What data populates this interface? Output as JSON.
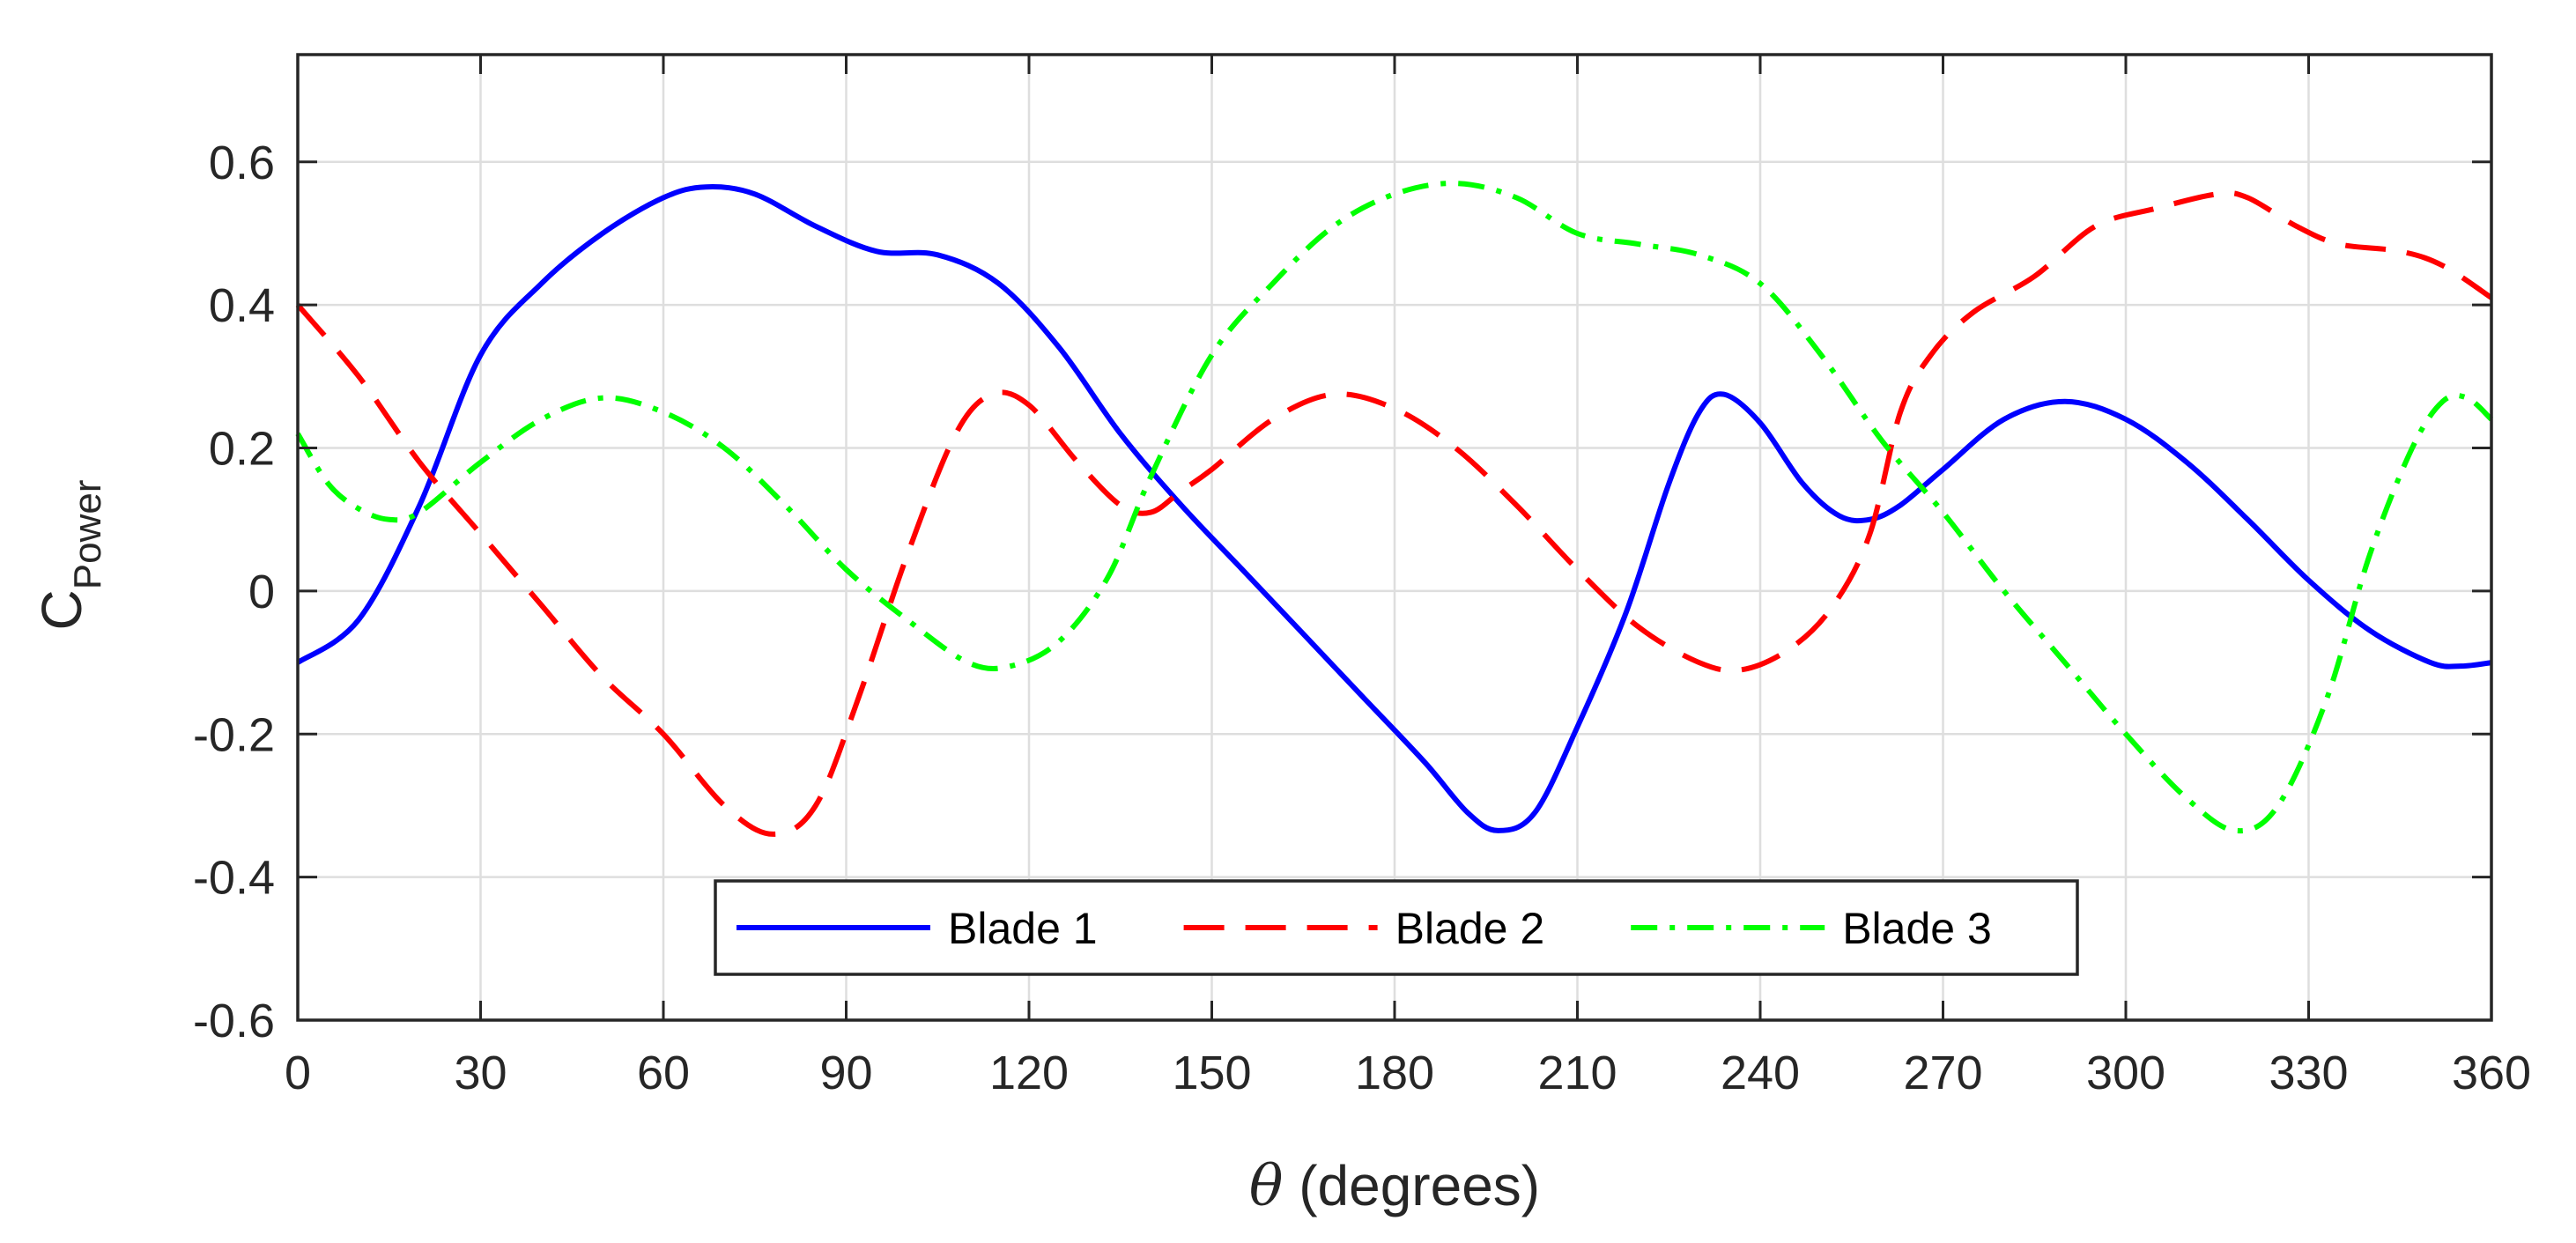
{
  "chart_data": {
    "type": "line",
    "title": "",
    "xlabel_symbol": "θ",
    "xlabel_text": " (degrees)",
    "ylabel_main": "C",
    "ylabel_sub": "Power",
    "xlim": [
      0,
      360
    ],
    "ylim": [
      -0.6,
      0.75
    ],
    "xticks": [
      0,
      30,
      60,
      90,
      120,
      150,
      180,
      210,
      240,
      270,
      300,
      330,
      360
    ],
    "yticks": [
      -0.6,
      -0.4,
      -0.2,
      0,
      0.2,
      0.4,
      0.6
    ],
    "xtick_labels": [
      "0",
      "30",
      "60",
      "90",
      "120",
      "150",
      "180",
      "210",
      "240",
      "270",
      "300",
      "330",
      "360"
    ],
    "ytick_labels": [
      "-0.6",
      "-0.4",
      "-0.2",
      "0",
      "0.2",
      "0.4",
      "0.6"
    ],
    "grid": true,
    "legend_position": "bottom-center",
    "series": [
      {
        "name": "Blade 1",
        "color": "#0000ff",
        "style": "solid",
        "points": [
          [
            0,
            -0.1
          ],
          [
            10,
            -0.04
          ],
          [
            20,
            0.12
          ],
          [
            30,
            0.33
          ],
          [
            40,
            0.43
          ],
          [
            50,
            0.5
          ],
          [
            60,
            0.55
          ],
          [
            67,
            0.565
          ],
          [
            75,
            0.555
          ],
          [
            85,
            0.51
          ],
          [
            95,
            0.475
          ],
          [
            105,
            0.47
          ],
          [
            115,
            0.43
          ],
          [
            125,
            0.34
          ],
          [
            135,
            0.22
          ],
          [
            145,
            0.12
          ],
          [
            155,
            0.03
          ],
          [
            165,
            -0.06
          ],
          [
            175,
            -0.15
          ],
          [
            185,
            -0.24
          ],
          [
            192,
            -0.31
          ],
          [
            197,
            -0.335
          ],
          [
            203,
            -0.31
          ],
          [
            210,
            -0.19
          ],
          [
            218,
            -0.03
          ],
          [
            225,
            0.15
          ],
          [
            230,
            0.25
          ],
          [
            234,
            0.275
          ],
          [
            240,
            0.235
          ],
          [
            247,
            0.15
          ],
          [
            253,
            0.105
          ],
          [
            258,
            0.1
          ],
          [
            263,
            0.12
          ],
          [
            270,
            0.17
          ],
          [
            280,
            0.24
          ],
          [
            290,
            0.265
          ],
          [
            300,
            0.24
          ],
          [
            310,
            0.18
          ],
          [
            320,
            0.1
          ],
          [
            330,
            0.015
          ],
          [
            340,
            -0.055
          ],
          [
            350,
            -0.1
          ],
          [
            355,
            -0.105
          ],
          [
            360,
            -0.1
          ]
        ]
      },
      {
        "name": "Blade 2",
        "color": "#ff0000",
        "style": "dashed",
        "points": [
          [
            0,
            0.4
          ],
          [
            10,
            0.3
          ],
          [
            20,
            0.18
          ],
          [
            30,
            0.08
          ],
          [
            40,
            -0.02
          ],
          [
            50,
            -0.12
          ],
          [
            60,
            -0.2
          ],
          [
            70,
            -0.3
          ],
          [
            78,
            -0.34
          ],
          [
            85,
            -0.3
          ],
          [
            92,
            -0.15
          ],
          [
            100,
            0.05
          ],
          [
            108,
            0.22
          ],
          [
            114,
            0.275
          ],
          [
            120,
            0.26
          ],
          [
            128,
            0.18
          ],
          [
            135,
            0.12
          ],
          [
            140,
            0.11
          ],
          [
            145,
            0.14
          ],
          [
            150,
            0.17
          ],
          [
            160,
            0.24
          ],
          [
            170,
            0.275
          ],
          [
            180,
            0.255
          ],
          [
            190,
            0.2
          ],
          [
            200,
            0.12
          ],
          [
            210,
            0.03
          ],
          [
            220,
            -0.05
          ],
          [
            230,
            -0.1
          ],
          [
            237,
            -0.11
          ],
          [
            245,
            -0.08
          ],
          [
            252,
            -0.02
          ],
          [
            258,
            0.08
          ],
          [
            263,
            0.25
          ],
          [
            268,
            0.33
          ],
          [
            275,
            0.39
          ],
          [
            285,
            0.44
          ],
          [
            295,
            0.51
          ],
          [
            305,
            0.535
          ],
          [
            315,
            0.555
          ],
          [
            320,
            0.55
          ],
          [
            328,
            0.51
          ],
          [
            335,
            0.485
          ],
          [
            345,
            0.475
          ],
          [
            352,
            0.455
          ],
          [
            360,
            0.41
          ]
        ]
      },
      {
        "name": "Blade 3",
        "color": "#00ff00",
        "style": "dashdot",
        "points": [
          [
            0,
            0.22
          ],
          [
            5,
            0.15
          ],
          [
            10,
            0.115
          ],
          [
            15,
            0.1
          ],
          [
            20,
            0.11
          ],
          [
            30,
            0.18
          ],
          [
            40,
            0.24
          ],
          [
            50,
            0.27
          ],
          [
            60,
            0.25
          ],
          [
            70,
            0.2
          ],
          [
            80,
            0.12
          ],
          [
            90,
            0.03
          ],
          [
            100,
            -0.04
          ],
          [
            110,
            -0.1
          ],
          [
            117,
            -0.105
          ],
          [
            125,
            -0.07
          ],
          [
            133,
            0.02
          ],
          [
            140,
            0.16
          ],
          [
            150,
            0.33
          ],
          [
            160,
            0.43
          ],
          [
            170,
            0.51
          ],
          [
            180,
            0.555
          ],
          [
            190,
            0.57
          ],
          [
            200,
            0.55
          ],
          [
            210,
            0.5
          ],
          [
            220,
            0.485
          ],
          [
            230,
            0.47
          ],
          [
            240,
            0.43
          ],
          [
            250,
            0.33
          ],
          [
            260,
            0.21
          ],
          [
            270,
            0.11
          ],
          [
            280,
            0.0
          ],
          [
            290,
            -0.1
          ],
          [
            300,
            -0.2
          ],
          [
            310,
            -0.29
          ],
          [
            318,
            -0.335
          ],
          [
            325,
            -0.3
          ],
          [
            333,
            -0.15
          ],
          [
            340,
            0.05
          ],
          [
            347,
            0.2
          ],
          [
            352,
            0.265
          ],
          [
            356,
            0.27
          ],
          [
            360,
            0.24
          ]
        ]
      }
    ]
  }
}
